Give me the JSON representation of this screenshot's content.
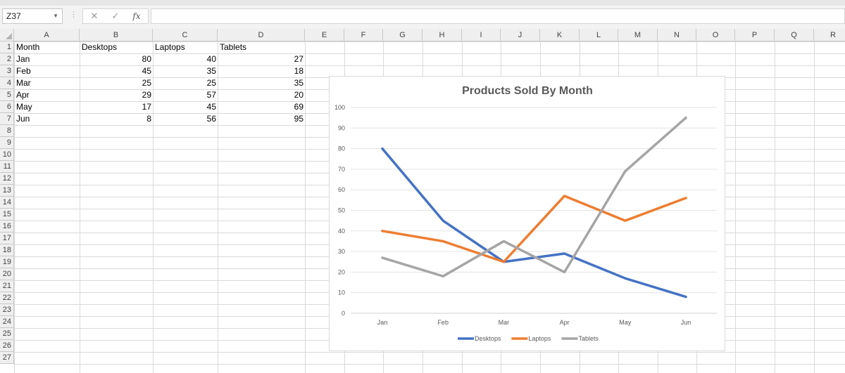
{
  "formula_bar": {
    "name_box": "Z37",
    "fx_label": "fx",
    "formula": ""
  },
  "columns": [
    "A",
    "B",
    "C",
    "D",
    "E",
    "F",
    "G",
    "H",
    "I",
    "J",
    "K",
    "L",
    "M",
    "N",
    "O",
    "P",
    "Q",
    "R"
  ],
  "rows": [
    "1",
    "2",
    "3",
    "4",
    "5",
    "6",
    "7",
    "8",
    "9",
    "10",
    "11",
    "12",
    "13",
    "14",
    "15",
    "16",
    "17",
    "18",
    "19",
    "20",
    "21",
    "22",
    "23",
    "24",
    "25",
    "26",
    "27"
  ],
  "sheet": {
    "header": [
      "Month",
      "Desktops",
      "Laptops",
      "Tablets"
    ],
    "data": [
      [
        "Jan",
        "80",
        "40",
        "27"
      ],
      [
        "Feb",
        "45",
        "35",
        "18"
      ],
      [
        "Mar",
        "25",
        "25",
        "35"
      ],
      [
        "Apr",
        "29",
        "57",
        "20"
      ],
      [
        "May",
        "17",
        "45",
        "69"
      ],
      [
        "Jun",
        "8",
        "56",
        "95"
      ]
    ]
  },
  "chart_data": {
    "type": "line",
    "title": "Products Sold By Month",
    "categories": [
      "Jan",
      "Feb",
      "Mar",
      "Apr",
      "May",
      "Jun"
    ],
    "series": [
      {
        "name": "Desktops",
        "values": [
          80,
          45,
          25,
          29,
          17,
          8
        ],
        "color": "#4472c4"
      },
      {
        "name": "Laptops",
        "values": [
          40,
          35,
          25,
          57,
          45,
          56
        ],
        "color": "#ed7d31"
      },
      {
        "name": "Tablets",
        "values": [
          27,
          18,
          35,
          20,
          69,
          95
        ],
        "color": "#a5a5a5"
      }
    ],
    "yticks": [
      "0",
      "10",
      "20",
      "30",
      "40",
      "50",
      "60",
      "70",
      "80",
      "90",
      "100"
    ],
    "ylim": [
      0,
      100
    ],
    "grid": true,
    "legend": "bottom",
    "xlabel": "",
    "ylabel": ""
  }
}
